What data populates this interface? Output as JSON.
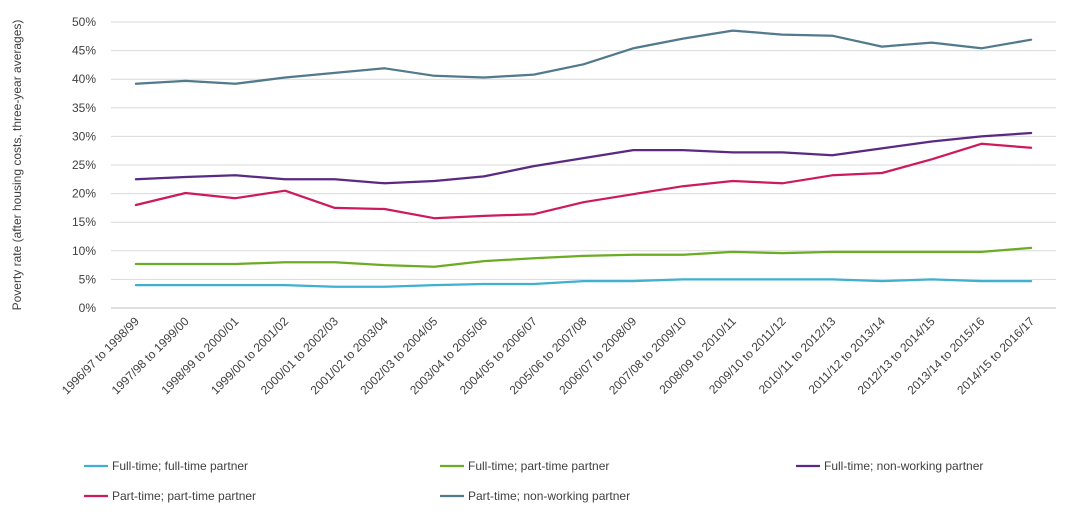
{
  "chart_data": {
    "type": "line",
    "title": "",
    "xlabel": "",
    "ylabel": "Poverty rate (after housing costs, three-year averages)",
    "ylim": [
      0,
      50
    ],
    "y_ticks": [
      "0%",
      "5%",
      "10%",
      "15%",
      "20%",
      "25%",
      "30%",
      "35%",
      "40%",
      "45%",
      "50%"
    ],
    "grid": "horizontal",
    "legend_position": "bottom",
    "categories": [
      "1996/97 to 1998/99",
      "1997/98 to 1999/00",
      "1998/99 to 2000/01",
      "1999/00 to 2001/02",
      "2000/01 to 2002/03",
      "2001/02 to 2003/04",
      "2002/03 to 2004/05",
      "2003/04 to 2005/06",
      "2004/05 to 2006/07",
      "2005/06 to 2007/08",
      "2006/07 to 2008/09",
      "2007/08 to 2009/10",
      "2008/09 to 2010/11",
      "2009/10 to 2011/12",
      "2010/11 to 2012/13",
      "2011/12 to 2013/14",
      "2012/13 to 2014/15",
      "2013/14 to 2015/16",
      "2014/15 to 2016/17"
    ],
    "series": [
      {
        "name": "Full-time; full-time partner",
        "color": "#3fb0d0",
        "values": [
          4,
          4,
          4,
          4,
          3.7,
          3.7,
          4,
          4.2,
          4.2,
          4.7,
          4.7,
          5,
          5,
          5,
          5,
          4.7,
          5,
          4.7,
          4.7
        ]
      },
      {
        "name": "Full-time; part-time partner",
        "color": "#6aac23",
        "values": [
          7.7,
          7.7,
          7.7,
          8,
          8,
          7.5,
          7.2,
          8.2,
          8.7,
          9.1,
          9.3,
          9.3,
          9.8,
          9.6,
          9.8,
          9.8,
          9.8,
          9.8,
          10.5
        ]
      },
      {
        "name": "Full-time; non-working partner",
        "color": "#5a2a82",
        "values": [
          22.5,
          22.9,
          23.2,
          22.5,
          22.5,
          21.8,
          22.2,
          23,
          24.8,
          26.2,
          27.6,
          27.6,
          27.2,
          27.2,
          26.7,
          27.9,
          29.1,
          30,
          30.6
        ]
      },
      {
        "name": "Part-time; part-time partner",
        "color": "#cc1b5c",
        "values": [
          18,
          20.1,
          19.2,
          20.5,
          17.5,
          17.3,
          15.7,
          16.1,
          16.4,
          18.5,
          19.9,
          21.3,
          22.2,
          21.8,
          23.2,
          23.6,
          26,
          28.7,
          28
        ]
      },
      {
        "name": "Part-time; non-working partner",
        "color": "#527a8c",
        "values": [
          39.2,
          39.7,
          39.2,
          40.3,
          41.1,
          41.9,
          40.6,
          40.3,
          40.8,
          42.6,
          45.4,
          47.1,
          48.5,
          47.8,
          47.6,
          45.7,
          46.4,
          45.4,
          46.9
        ]
      }
    ]
  }
}
